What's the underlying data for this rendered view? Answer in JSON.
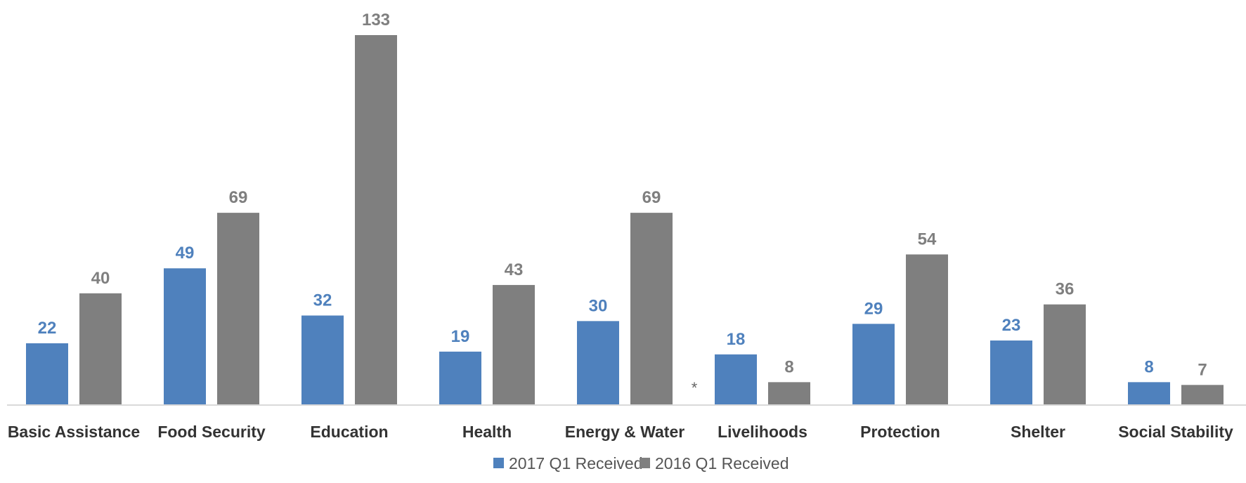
{
  "chart_data": {
    "type": "bar",
    "categories": [
      "Basic Assistance",
      "Food Security",
      "Education",
      "Health",
      "Energy & Water",
      "Livelihoods",
      "Protection",
      "Shelter",
      "Social Stability"
    ],
    "series": [
      {
        "name": "2017 Q1 Received",
        "color": "#4F81BD",
        "values": [
          22,
          49,
          32,
          19,
          30,
          18,
          29,
          23,
          8
        ]
      },
      {
        "name": "2016 Q1 Received",
        "color": "#7F7F7F",
        "values": [
          40,
          69,
          133,
          43,
          69,
          8,
          54,
          36,
          7
        ]
      }
    ],
    "ylim": [
      0,
      133
    ],
    "grid": false,
    "legend_position": "bottom",
    "annotation": "*"
  }
}
